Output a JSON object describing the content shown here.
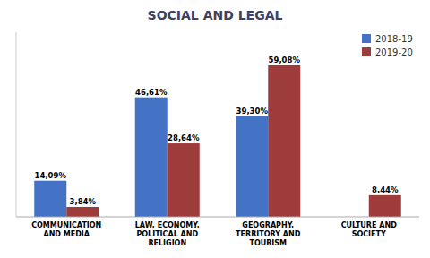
{
  "chart_data": {
    "type": "bar",
    "title": "SOCIAL AND LEGAL",
    "categories": [
      "COMMUNICATION\nAND MEDIA",
      "LAW, ECONOMY,\nPOLITICAL AND\nRELIGION",
      "GEOGRAPHY,\nTERRITORY AND\nTOURISM",
      "CULTURE AND\nSOCIETY"
    ],
    "series": [
      {
        "name": "2018-19",
        "color": "#4472C4",
        "values": [
          14.09,
          46.61,
          39.3,
          0
        ],
        "value_labels": [
          "14,09%",
          "46,61%",
          "39,30%",
          null
        ]
      },
      {
        "name": "2019-20",
        "color": "#9E3B3B",
        "values": [
          3.84,
          28.64,
          59.08,
          8.44
        ],
        "value_labels": [
          "3,84%",
          "28,64%",
          "59,08%",
          "8,44%"
        ]
      }
    ],
    "ylim": [
      0,
      72
    ],
    "yticks": [],
    "grid": false,
    "tick_labels": "x",
    "data_labels": true,
    "legend": "upper right"
  }
}
